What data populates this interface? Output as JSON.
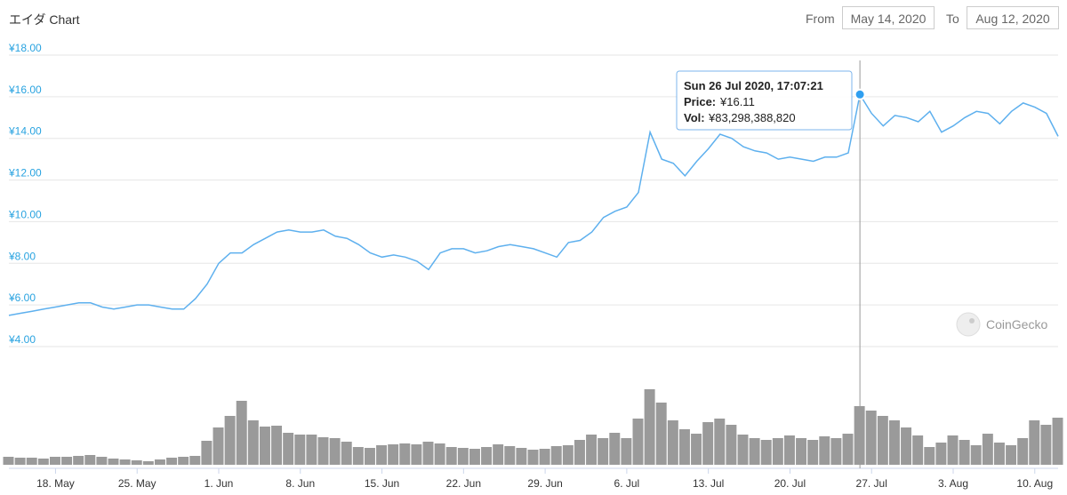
{
  "header": {
    "title": "エイダ Chart",
    "from_label": "From",
    "from_value": "May 14, 2020",
    "to_label": "To",
    "to_value": "Aug 12, 2020"
  },
  "watermark": "CoinGecko",
  "tooltip": {
    "date": "Sun 26 Jul 2020, 17:07:21",
    "price_label": "Price:",
    "price_value": "¥16.11",
    "vol_label": "Vol:",
    "vol_value": "¥83,298,388,820"
  },
  "colors": {
    "line": "#5eb0ee",
    "axis_label": "#29a3e0",
    "volume": "#888888",
    "marker": "#2f9ff0"
  },
  "chart_data": {
    "type": "line",
    "title": "エイダ Chart",
    "x_range": [
      "2020-05-14",
      "2020-08-12"
    ],
    "ylim": [
      4,
      18
    ],
    "y_ticks": [
      "¥4.00",
      "¥6.00",
      "¥8.00",
      "¥10.00",
      "¥12.00",
      "¥14.00",
      "¥16.00",
      "¥18.00"
    ],
    "x_ticks": [
      "18. May",
      "25. May",
      "1. Jun",
      "8. Jun",
      "15. Jun",
      "22. Jun",
      "29. Jun",
      "6. Jul",
      "13. Jul",
      "20. Jul",
      "27. Jul",
      "3. Aug",
      "10. Aug"
    ],
    "x_tick_dates": [
      "2020-05-18",
      "2020-05-25",
      "2020-06-01",
      "2020-06-08",
      "2020-06-15",
      "2020-06-22",
      "2020-06-29",
      "2020-07-06",
      "2020-07-13",
      "2020-07-20",
      "2020-07-27",
      "2020-08-03",
      "2020-08-10"
    ],
    "grid": true,
    "series": [
      {
        "values": [
          [
            "2020-05-14",
            5.5
          ],
          [
            "2020-05-15",
            5.6
          ],
          [
            "2020-05-16",
            5.7
          ],
          [
            "2020-05-17",
            5.8
          ],
          [
            "2020-05-18",
            5.9
          ],
          [
            "2020-05-19",
            6.0
          ],
          [
            "2020-05-20",
            6.1
          ],
          [
            "2020-05-21",
            6.1
          ],
          [
            "2020-05-22",
            5.9
          ],
          [
            "2020-05-23",
            5.8
          ],
          [
            "2020-05-24",
            5.9
          ],
          [
            "2020-05-25",
            6.0
          ],
          [
            "2020-05-26",
            6.0
          ],
          [
            "2020-05-27",
            5.9
          ],
          [
            "2020-05-28",
            5.8
          ],
          [
            "2020-05-29",
            5.8
          ],
          [
            "2020-05-30",
            6.3
          ],
          [
            "2020-05-31",
            7.0
          ],
          [
            "2020-06-01",
            8.0
          ],
          [
            "2020-06-02",
            8.5
          ],
          [
            "2020-06-03",
            8.5
          ],
          [
            "2020-06-04",
            8.9
          ],
          [
            "2020-06-05",
            9.2
          ],
          [
            "2020-06-06",
            9.5
          ],
          [
            "2020-06-07",
            9.6
          ],
          [
            "2020-06-08",
            9.5
          ],
          [
            "2020-06-09",
            9.5
          ],
          [
            "2020-06-10",
            9.6
          ],
          [
            "2020-06-11",
            9.3
          ],
          [
            "2020-06-12",
            9.2
          ],
          [
            "2020-06-13",
            8.9
          ],
          [
            "2020-06-14",
            8.5
          ],
          [
            "2020-06-15",
            8.3
          ],
          [
            "2020-06-16",
            8.4
          ],
          [
            "2020-06-17",
            8.3
          ],
          [
            "2020-06-18",
            8.1
          ],
          [
            "2020-06-19",
            7.7
          ],
          [
            "2020-06-20",
            8.5
          ],
          [
            "2020-06-21",
            8.7
          ],
          [
            "2020-06-22",
            8.7
          ],
          [
            "2020-06-23",
            8.5
          ],
          [
            "2020-06-24",
            8.6
          ],
          [
            "2020-06-25",
            8.8
          ],
          [
            "2020-06-26",
            8.9
          ],
          [
            "2020-06-27",
            8.8
          ],
          [
            "2020-06-28",
            8.7
          ],
          [
            "2020-06-29",
            8.5
          ],
          [
            "2020-06-30",
            8.3
          ],
          [
            "2020-07-01",
            9.0
          ],
          [
            "2020-07-02",
            9.1
          ],
          [
            "2020-07-03",
            9.5
          ],
          [
            "2020-07-04",
            10.2
          ],
          [
            "2020-07-05",
            10.5
          ],
          [
            "2020-07-06",
            10.7
          ],
          [
            "2020-07-07",
            11.4
          ],
          [
            "2020-07-08",
            14.3
          ],
          [
            "2020-07-09",
            13.0
          ],
          [
            "2020-07-10",
            12.8
          ],
          [
            "2020-07-11",
            12.2
          ],
          [
            "2020-07-12",
            12.9
          ],
          [
            "2020-07-13",
            13.5
          ],
          [
            "2020-07-14",
            14.2
          ],
          [
            "2020-07-15",
            14.0
          ],
          [
            "2020-07-16",
            13.6
          ],
          [
            "2020-07-17",
            13.4
          ],
          [
            "2020-07-18",
            13.3
          ],
          [
            "2020-07-19",
            13.0
          ],
          [
            "2020-07-20",
            13.1
          ],
          [
            "2020-07-21",
            13.0
          ],
          [
            "2020-07-22",
            12.9
          ],
          [
            "2020-07-23",
            13.1
          ],
          [
            "2020-07-24",
            13.1
          ],
          [
            "2020-07-25",
            13.3
          ],
          [
            "2020-07-26",
            16.1
          ],
          [
            "2020-07-27",
            15.2
          ],
          [
            "2020-07-28",
            14.6
          ],
          [
            "2020-07-29",
            15.1
          ],
          [
            "2020-07-30",
            15.0
          ],
          [
            "2020-07-31",
            14.8
          ],
          [
            "2020-08-01",
            15.3
          ],
          [
            "2020-08-02",
            14.3
          ],
          [
            "2020-08-03",
            14.6
          ],
          [
            "2020-08-04",
            15.0
          ],
          [
            "2020-08-05",
            15.3
          ],
          [
            "2020-08-06",
            15.2
          ],
          [
            "2020-08-07",
            14.7
          ],
          [
            "2020-08-08",
            15.3
          ],
          [
            "2020-08-09",
            15.7
          ],
          [
            "2020-08-10",
            15.5
          ],
          [
            "2020-08-11",
            15.2
          ],
          [
            "2020-08-12",
            14.1
          ]
        ]
      },
      {
        "type": "bar",
        "relative_values": [
          [
            "2020-05-14",
            0.09
          ],
          [
            "2020-05-15",
            0.08
          ],
          [
            "2020-05-16",
            0.08
          ],
          [
            "2020-05-17",
            0.07
          ],
          [
            "2020-05-18",
            0.09
          ],
          [
            "2020-05-19",
            0.09
          ],
          [
            "2020-05-20",
            0.1
          ],
          [
            "2020-05-21",
            0.11
          ],
          [
            "2020-05-22",
            0.09
          ],
          [
            "2020-05-23",
            0.07
          ],
          [
            "2020-05-24",
            0.06
          ],
          [
            "2020-05-25",
            0.05
          ],
          [
            "2020-05-26",
            0.04
          ],
          [
            "2020-05-27",
            0.06
          ],
          [
            "2020-05-28",
            0.08
          ],
          [
            "2020-05-29",
            0.09
          ],
          [
            "2020-05-30",
            0.1
          ],
          [
            "2020-05-31",
            0.27
          ],
          [
            "2020-06-01",
            0.42
          ],
          [
            "2020-06-02",
            0.55
          ],
          [
            "2020-06-03",
            0.72
          ],
          [
            "2020-06-04",
            0.5
          ],
          [
            "2020-06-05",
            0.43
          ],
          [
            "2020-06-06",
            0.44
          ],
          [
            "2020-06-07",
            0.36
          ],
          [
            "2020-06-08",
            0.34
          ],
          [
            "2020-06-09",
            0.34
          ],
          [
            "2020-06-10",
            0.31
          ],
          [
            "2020-06-11",
            0.3
          ],
          [
            "2020-06-12",
            0.26
          ],
          [
            "2020-06-13",
            0.2
          ],
          [
            "2020-06-14",
            0.19
          ],
          [
            "2020-06-15",
            0.22
          ],
          [
            "2020-06-16",
            0.23
          ],
          [
            "2020-06-17",
            0.24
          ],
          [
            "2020-06-18",
            0.23
          ],
          [
            "2020-06-19",
            0.26
          ],
          [
            "2020-06-20",
            0.24
          ],
          [
            "2020-06-21",
            0.2
          ],
          [
            "2020-06-22",
            0.19
          ],
          [
            "2020-06-23",
            0.18
          ],
          [
            "2020-06-24",
            0.2
          ],
          [
            "2020-06-25",
            0.23
          ],
          [
            "2020-06-26",
            0.21
          ],
          [
            "2020-06-27",
            0.19
          ],
          [
            "2020-06-28",
            0.17
          ],
          [
            "2020-06-29",
            0.18
          ],
          [
            "2020-06-30",
            0.21
          ],
          [
            "2020-07-01",
            0.22
          ],
          [
            "2020-07-02",
            0.28
          ],
          [
            "2020-07-03",
            0.34
          ],
          [
            "2020-07-04",
            0.3
          ],
          [
            "2020-07-05",
            0.36
          ],
          [
            "2020-07-06",
            0.3
          ],
          [
            "2020-07-07",
            0.52
          ],
          [
            "2020-07-08",
            0.85
          ],
          [
            "2020-07-09",
            0.7
          ],
          [
            "2020-07-10",
            0.5
          ],
          [
            "2020-07-11",
            0.4
          ],
          [
            "2020-07-12",
            0.35
          ],
          [
            "2020-07-13",
            0.48
          ],
          [
            "2020-07-14",
            0.52
          ],
          [
            "2020-07-15",
            0.45
          ],
          [
            "2020-07-16",
            0.34
          ],
          [
            "2020-07-17",
            0.3
          ],
          [
            "2020-07-18",
            0.28
          ],
          [
            "2020-07-19",
            0.3
          ],
          [
            "2020-07-20",
            0.33
          ],
          [
            "2020-07-21",
            0.3
          ],
          [
            "2020-07-22",
            0.28
          ],
          [
            "2020-07-23",
            0.32
          ],
          [
            "2020-07-24",
            0.3
          ],
          [
            "2020-07-25",
            0.35
          ],
          [
            "2020-07-26",
            0.66
          ],
          [
            "2020-07-27",
            0.61
          ],
          [
            "2020-07-28",
            0.55
          ],
          [
            "2020-07-29",
            0.5
          ],
          [
            "2020-07-30",
            0.42
          ],
          [
            "2020-07-31",
            0.33
          ],
          [
            "2020-08-01",
            0.2
          ],
          [
            "2020-08-02",
            0.25
          ],
          [
            "2020-08-03",
            0.33
          ],
          [
            "2020-08-04",
            0.28
          ],
          [
            "2020-08-05",
            0.22
          ],
          [
            "2020-08-06",
            0.35
          ],
          [
            "2020-08-07",
            0.25
          ],
          [
            "2020-08-08",
            0.22
          ],
          [
            "2020-08-09",
            0.3
          ],
          [
            "2020-08-10",
            0.5
          ],
          [
            "2020-08-11",
            0.45
          ],
          [
            "2020-08-12",
            0.53
          ]
        ]
      }
    ],
    "highlight": {
      "date": "2020-07-26",
      "value": 16.11
    }
  }
}
